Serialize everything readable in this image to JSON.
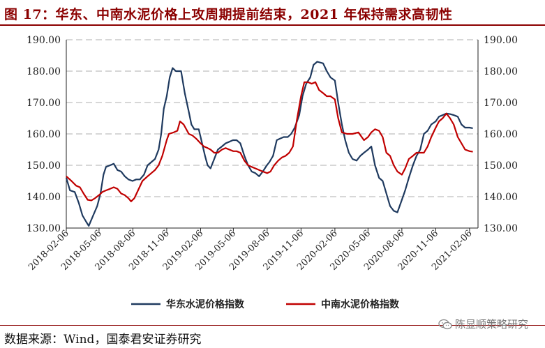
{
  "header": {
    "title": "图 17：华东、中南水泥价格上攻周期提前结束，2021 年保持需求高韧性"
  },
  "footer": {
    "source": "数据来源：Wind，国泰君安证券研究",
    "watermark": "陈显顺策略研究",
    "watermark_icon": "wechat-icon"
  },
  "colors": {
    "series_east": "#1F3A5F",
    "series_central": "#C00000",
    "title": "#8B0000"
  },
  "chart_data": {
    "type": "line",
    "ylim": [
      130,
      190
    ],
    "yticks": [
      "130.00",
      "140.00",
      "150.00",
      "160.00",
      "170.00",
      "180.00",
      "190.00"
    ],
    "xlim": [
      "2018-02-06",
      "2021-03-01"
    ],
    "xticks": [
      "2018-02-06",
      "2018-05-06",
      "2018-08-06",
      "2018-11-06",
      "2019-02-06",
      "2019-05-06",
      "2019-08-06",
      "2019-11-06",
      "2020-02-06",
      "2020-05-06",
      "2020-08-06",
      "2020-11-06",
      "2021-02-06"
    ],
    "grid": "horizontal-dashed",
    "legend_position": "bottom",
    "series": [
      {
        "name": "华东水泥价格指数",
        "color": "#1F3A5F",
        "points": [
          [
            "2018-02-06",
            146
          ],
          [
            "2018-02-16",
            142
          ],
          [
            "2018-03-01",
            141.5
          ],
          [
            "2018-03-12",
            138
          ],
          [
            "2018-03-22",
            134
          ],
          [
            "2018-04-01",
            132
          ],
          [
            "2018-04-08",
            130.7
          ],
          [
            "2018-04-20",
            134
          ],
          [
            "2018-05-01",
            137
          ],
          [
            "2018-05-10",
            141
          ],
          [
            "2018-05-18",
            147
          ],
          [
            "2018-05-25",
            149.5
          ],
          [
            "2018-06-05",
            150
          ],
          [
            "2018-06-15",
            150.5
          ],
          [
            "2018-06-25",
            148.5
          ],
          [
            "2018-07-05",
            148
          ],
          [
            "2018-07-15",
            146.5
          ],
          [
            "2018-07-25",
            145.5
          ],
          [
            "2018-08-05",
            145
          ],
          [
            "2018-08-15",
            145.5
          ],
          [
            "2018-08-25",
            145.5
          ],
          [
            "2018-09-05",
            147
          ],
          [
            "2018-09-15",
            150
          ],
          [
            "2018-09-25",
            151
          ],
          [
            "2018-10-05",
            152
          ],
          [
            "2018-10-15",
            155
          ],
          [
            "2018-10-22",
            160
          ],
          [
            "2018-10-29",
            168
          ],
          [
            "2018-11-06",
            172
          ],
          [
            "2018-11-14",
            178
          ],
          [
            "2018-11-22",
            181
          ],
          [
            "2018-12-01",
            180
          ],
          [
            "2018-12-15",
            180
          ],
          [
            "2018-12-25",
            173
          ],
          [
            "2019-01-05",
            167
          ],
          [
            "2019-01-12",
            163
          ],
          [
            "2019-01-20",
            161.5
          ],
          [
            "2019-02-01",
            161.5
          ],
          [
            "2019-02-10",
            157
          ],
          [
            "2019-02-18",
            153
          ],
          [
            "2019-02-25",
            150
          ],
          [
            "2019-03-05",
            149
          ],
          [
            "2019-03-15",
            152
          ],
          [
            "2019-03-25",
            155
          ],
          [
            "2019-04-05",
            156
          ],
          [
            "2019-04-15",
            157
          ],
          [
            "2019-04-25",
            157.5
          ],
          [
            "2019-05-05",
            158
          ],
          [
            "2019-05-15",
            158
          ],
          [
            "2019-05-25",
            157
          ],
          [
            "2019-06-05",
            153
          ],
          [
            "2019-06-15",
            150
          ],
          [
            "2019-06-25",
            148
          ],
          [
            "2019-07-05",
            147.5
          ],
          [
            "2019-07-15",
            146.5
          ],
          [
            "2019-07-25",
            148
          ],
          [
            "2019-08-05",
            150
          ],
          [
            "2019-08-12",
            151
          ],
          [
            "2019-08-22",
            153
          ],
          [
            "2019-09-01",
            158
          ],
          [
            "2019-09-10",
            158.5
          ],
          [
            "2019-09-20",
            159
          ],
          [
            "2019-10-01",
            159
          ],
          [
            "2019-10-10",
            160
          ],
          [
            "2019-10-20",
            162
          ],
          [
            "2019-11-01",
            166
          ],
          [
            "2019-11-10",
            172
          ],
          [
            "2019-11-20",
            176
          ],
          [
            "2019-12-01",
            178
          ],
          [
            "2019-12-10",
            182
          ],
          [
            "2019-12-20",
            183
          ],
          [
            "2020-01-05",
            182.5
          ],
          [
            "2020-01-15",
            180
          ],
          [
            "2020-01-25",
            178
          ],
          [
            "2020-02-06",
            177
          ],
          [
            "2020-02-15",
            170
          ],
          [
            "2020-02-25",
            163
          ],
          [
            "2020-03-05",
            158
          ],
          [
            "2020-03-15",
            154
          ],
          [
            "2020-03-25",
            152
          ],
          [
            "2020-04-05",
            151.5
          ],
          [
            "2020-04-15",
            153
          ],
          [
            "2020-04-25",
            154
          ],
          [
            "2020-05-06",
            155
          ],
          [
            "2020-05-15",
            156
          ],
          [
            "2020-05-25",
            150
          ],
          [
            "2020-06-05",
            146
          ],
          [
            "2020-06-15",
            145
          ],
          [
            "2020-06-25",
            141
          ],
          [
            "2020-07-05",
            137
          ],
          [
            "2020-07-15",
            135.5
          ],
          [
            "2020-07-25",
            135
          ],
          [
            "2020-08-06",
            139
          ],
          [
            "2020-08-15",
            142
          ],
          [
            "2020-08-25",
            146
          ],
          [
            "2020-09-05",
            150
          ],
          [
            "2020-09-15",
            153
          ],
          [
            "2020-09-25",
            155
          ],
          [
            "2020-10-05",
            160
          ],
          [
            "2020-10-15",
            161
          ],
          [
            "2020-10-25",
            163
          ],
          [
            "2020-11-06",
            164
          ],
          [
            "2020-11-15",
            165.5
          ],
          [
            "2020-11-25",
            166
          ],
          [
            "2020-12-05",
            166.5
          ],
          [
            "2020-12-15",
            166.3
          ],
          [
            "2020-12-25",
            166
          ],
          [
            "2021-01-05",
            165.5
          ],
          [
            "2021-01-15",
            163
          ],
          [
            "2021-01-25",
            162
          ],
          [
            "2021-02-06",
            162
          ],
          [
            "2021-02-15",
            161.8
          ]
        ]
      },
      {
        "name": "中南水泥价格指数",
        "color": "#C00000",
        "points": [
          [
            "2018-02-06",
            146.5
          ],
          [
            "2018-02-20",
            145
          ],
          [
            "2018-03-05",
            143.5
          ],
          [
            "2018-03-15",
            143
          ],
          [
            "2018-03-25",
            141
          ],
          [
            "2018-04-05",
            139
          ],
          [
            "2018-04-15",
            138.8
          ],
          [
            "2018-04-25",
            139.5
          ],
          [
            "2018-05-06",
            140.5
          ],
          [
            "2018-05-15",
            141.5
          ],
          [
            "2018-05-25",
            142
          ],
          [
            "2018-06-05",
            142.5
          ],
          [
            "2018-06-15",
            143
          ],
          [
            "2018-06-25",
            142.5
          ],
          [
            "2018-07-05",
            141
          ],
          [
            "2018-07-15",
            140.5
          ],
          [
            "2018-07-25",
            139.5
          ],
          [
            "2018-08-01",
            138.5
          ],
          [
            "2018-08-10",
            139.5
          ],
          [
            "2018-08-20",
            142
          ],
          [
            "2018-09-01",
            145
          ],
          [
            "2018-09-15",
            146.5
          ],
          [
            "2018-09-25",
            147.5
          ],
          [
            "2018-10-05",
            148.5
          ],
          [
            "2018-10-15",
            150
          ],
          [
            "2018-10-25",
            153
          ],
          [
            "2018-11-06",
            158
          ],
          [
            "2018-11-12",
            160
          ],
          [
            "2018-11-25",
            160.5
          ],
          [
            "2018-12-05",
            161
          ],
          [
            "2018-12-12",
            164
          ],
          [
            "2018-12-22",
            163
          ],
          [
            "2019-01-05",
            160
          ],
          [
            "2019-01-15",
            159.5
          ],
          [
            "2019-01-25",
            158.5
          ],
          [
            "2019-02-06",
            157
          ],
          [
            "2019-02-15",
            156
          ],
          [
            "2019-02-25",
            155.5
          ],
          [
            "2019-03-05",
            155
          ],
          [
            "2019-03-15",
            154
          ],
          [
            "2019-03-25",
            154
          ],
          [
            "2019-04-05",
            155
          ],
          [
            "2019-04-15",
            155.5
          ],
          [
            "2019-04-25",
            155
          ],
          [
            "2019-05-06",
            154.5
          ],
          [
            "2019-05-15",
            154.5
          ],
          [
            "2019-05-25",
            154
          ],
          [
            "2019-06-05",
            151.5
          ],
          [
            "2019-06-15",
            150
          ],
          [
            "2019-06-25",
            149.5
          ],
          [
            "2019-07-05",
            149
          ],
          [
            "2019-07-15",
            148.5
          ],
          [
            "2019-07-25",
            148
          ],
          [
            "2019-08-06",
            147.5
          ],
          [
            "2019-08-15",
            148
          ],
          [
            "2019-08-25",
            150
          ],
          [
            "2019-09-05",
            151.5
          ],
          [
            "2019-09-15",
            152.5
          ],
          [
            "2019-09-25",
            153
          ],
          [
            "2019-10-05",
            154
          ],
          [
            "2019-10-15",
            156
          ],
          [
            "2019-10-25",
            164
          ],
          [
            "2019-11-06",
            172
          ],
          [
            "2019-11-15",
            176.5
          ],
          [
            "2019-11-25",
            176.5
          ],
          [
            "2019-12-05",
            176
          ],
          [
            "2019-12-15",
            176.5
          ],
          [
            "2019-12-25",
            174
          ],
          [
            "2020-01-05",
            173
          ],
          [
            "2020-01-15",
            172
          ],
          [
            "2020-01-25",
            172
          ],
          [
            "2020-02-06",
            171
          ],
          [
            "2020-02-15",
            165
          ],
          [
            "2020-02-25",
            160.5
          ],
          [
            "2020-03-10",
            160
          ],
          [
            "2020-03-25",
            160
          ],
          [
            "2020-04-10",
            160.5
          ],
          [
            "2020-04-25",
            158
          ],
          [
            "2020-05-06",
            159
          ],
          [
            "2020-05-15",
            160.5
          ],
          [
            "2020-05-25",
            161.5
          ],
          [
            "2020-06-05",
            161
          ],
          [
            "2020-06-15",
            159
          ],
          [
            "2020-06-25",
            154
          ],
          [
            "2020-07-05",
            153
          ],
          [
            "2020-07-15",
            150
          ],
          [
            "2020-07-25",
            148
          ],
          [
            "2020-08-06",
            147
          ],
          [
            "2020-08-15",
            149
          ],
          [
            "2020-08-25",
            152
          ],
          [
            "2020-09-05",
            153
          ],
          [
            "2020-09-15",
            154
          ],
          [
            "2020-09-25",
            154
          ],
          [
            "2020-10-05",
            154
          ],
          [
            "2020-10-15",
            156
          ],
          [
            "2020-10-25",
            159
          ],
          [
            "2020-11-06",
            162
          ],
          [
            "2020-11-15",
            164
          ],
          [
            "2020-11-25",
            165
          ],
          [
            "2020-12-05",
            166.5
          ],
          [
            "2020-12-15",
            165
          ],
          [
            "2020-12-25",
            163
          ],
          [
            "2021-01-05",
            159
          ],
          [
            "2021-01-15",
            157
          ],
          [
            "2021-01-25",
            155
          ],
          [
            "2021-02-06",
            154.5
          ],
          [
            "2021-02-15",
            154.3
          ]
        ]
      }
    ]
  }
}
